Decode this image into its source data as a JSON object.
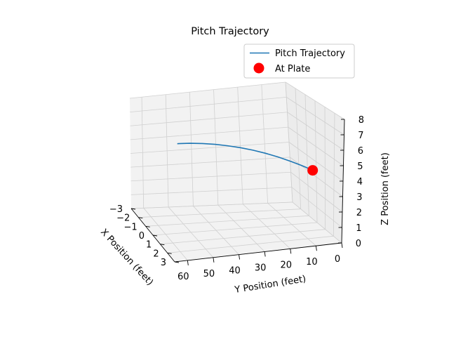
{
  "chart_data": {
    "type": "line",
    "projection": "3d",
    "title": "Pitch Trajectory",
    "xlabel": "X Position (feet)",
    "ylabel": "Y Position (feet)",
    "zlabel": "Z Position (feet)",
    "xlim": [
      -3,
      3
    ],
    "ylim": [
      0,
      65
    ],
    "zlim": [
      0,
      8
    ],
    "xticks": [
      -3,
      -2,
      -1,
      0,
      1,
      2,
      3
    ],
    "yticks": [
      0,
      10,
      20,
      30,
      40,
      50,
      60
    ],
    "zticks": [
      0,
      1,
      2,
      3,
      4,
      5,
      6,
      7,
      8
    ],
    "grid": true,
    "legend_position": "top-right",
    "series": [
      {
        "name": "Pitch Trajectory",
        "kind": "line",
        "color": "#1f77b4",
        "x": [
          0,
          0,
          0,
          0,
          0,
          0,
          0,
          0,
          0,
          0,
          0,
          0,
          0,
          0
        ],
        "y": [
          55,
          50,
          45,
          40,
          35,
          30,
          25,
          20,
          15,
          10,
          6,
          4,
          2,
          1.4
        ],
        "z": [
          6.0,
          5.95,
          5.86,
          5.73,
          5.56,
          5.36,
          5.12,
          4.84,
          4.52,
          4.16,
          3.85,
          3.68,
          3.5,
          3.45
        ]
      },
      {
        "name": "At Plate",
        "kind": "scatter",
        "color": "#ff0000",
        "x": [
          0
        ],
        "y": [
          1.4
        ],
        "z": [
          3.45
        ]
      }
    ]
  }
}
